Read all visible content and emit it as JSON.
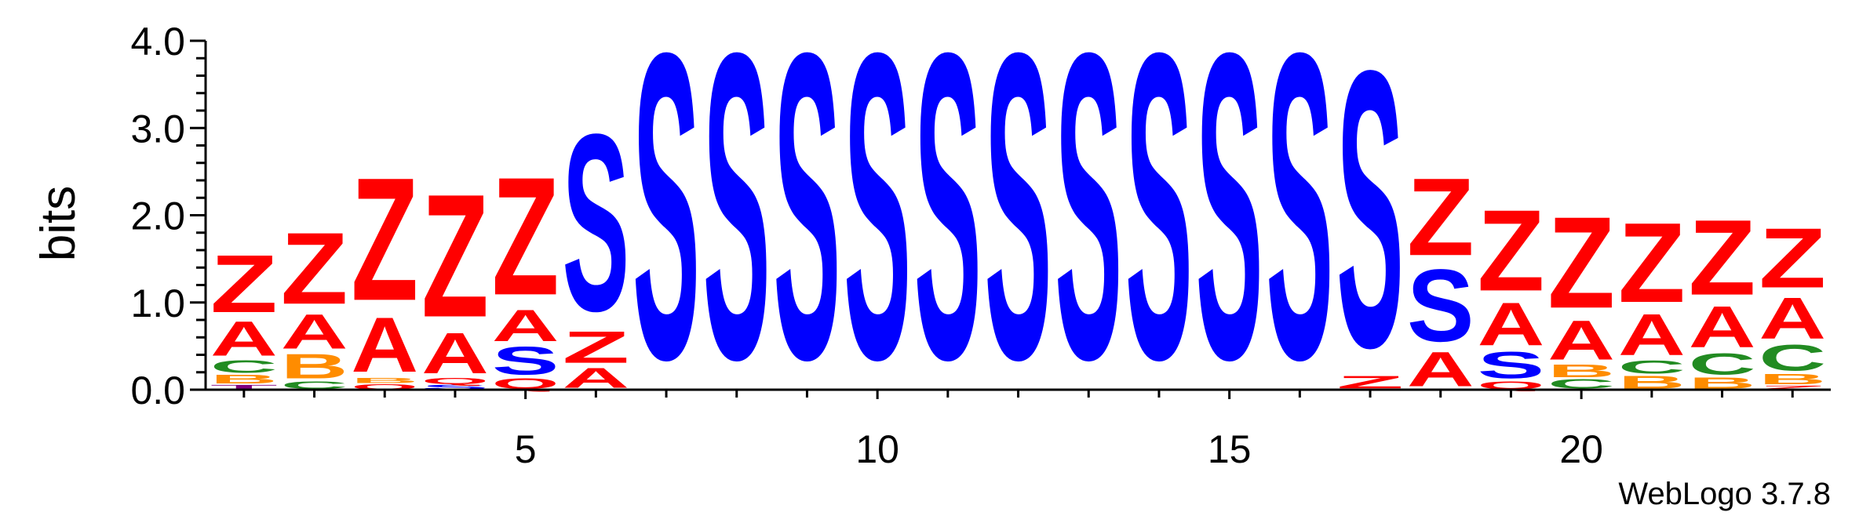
{
  "chart_data": {
    "type": "sequence_logo",
    "ylabel": "bits",
    "ylim": [
      0,
      4.0
    ],
    "y_ticks": [
      "0.0",
      "1.0",
      "2.0",
      "3.0",
      "4.0"
    ],
    "y_tick_values": [
      0,
      1,
      2,
      3,
      4
    ],
    "x_ticks": [
      "5",
      "10",
      "15",
      "20"
    ],
    "x_tick_values": [
      5,
      10,
      15,
      20
    ],
    "positions": [
      1,
      2,
      3,
      4,
      5,
      6,
      7,
      8,
      9,
      10,
      11,
      12,
      13,
      14,
      15,
      16,
      17,
      18,
      19,
      20,
      21,
      22,
      23
    ],
    "colors": {
      "Z": "#ff0000",
      "A": "#ff0000",
      "S": "#0000ff",
      "B": "#ff8c00",
      "C": "#228b22",
      "Q": "#ff0000",
      "T": "#800080"
    },
    "stacks": [
      [
        [
          "T",
          0.06
        ],
        [
          "B",
          0.12
        ],
        [
          "C",
          0.17
        ],
        [
          "A",
          0.47
        ],
        [
          "Z",
          0.78
        ]
      ],
      [
        [
          "C",
          0.1
        ],
        [
          "B",
          0.33
        ],
        [
          "A",
          0.47
        ],
        [
          "Z",
          0.97
        ]
      ],
      [
        [
          "Q",
          0.07
        ],
        [
          "B",
          0.07
        ],
        [
          "A",
          0.74
        ],
        [
          "Z",
          1.67
        ]
      ],
      [
        [
          "S",
          0.06
        ],
        [
          "Q",
          0.08
        ],
        [
          "A",
          0.55
        ],
        [
          "Z",
          1.67
        ]
      ],
      [
        [
          "Q",
          0.14
        ],
        [
          "S",
          0.38
        ],
        [
          "A",
          0.43
        ],
        [
          "Z",
          1.6
        ]
      ],
      [
        [
          "A",
          0.27
        ],
        [
          "Z",
          0.43
        ],
        [
          "S",
          2.4
        ]
      ],
      [
        [
          "S",
          4.15
        ]
      ],
      [
        [
          "S",
          4.15
        ]
      ],
      [
        [
          "S",
          4.15
        ]
      ],
      [
        [
          "S",
          4.15
        ]
      ],
      [
        [
          "S",
          4.15
        ]
      ],
      [
        [
          "S",
          4.15
        ]
      ],
      [
        [
          "S",
          4.15
        ]
      ],
      [
        [
          "S",
          4.15
        ]
      ],
      [
        [
          "S",
          4.15
        ]
      ],
      [
        [
          "S",
          4.15
        ]
      ],
      [
        [
          "Z",
          0.17
        ],
        [
          "S",
          3.75
        ]
      ],
      [
        [
          "A",
          0.47
        ],
        [
          "S",
          0.98
        ],
        [
          "Z",
          1.05
        ]
      ],
      [
        [
          "Q",
          0.1
        ],
        [
          "S",
          0.36
        ],
        [
          "A",
          0.58
        ],
        [
          "Z",
          1.1
        ]
      ],
      [
        [
          "C",
          0.13
        ],
        [
          "B",
          0.17
        ],
        [
          "A",
          0.53
        ],
        [
          "Z",
          1.24
        ]
      ],
      [
        [
          "B",
          0.17
        ],
        [
          "C",
          0.18
        ],
        [
          "A",
          0.56
        ],
        [
          "Z",
          1.08
        ]
      ],
      [
        [
          "B",
          0.15
        ],
        [
          "C",
          0.29
        ],
        [
          "A",
          0.56
        ],
        [
          "Z",
          1.02
        ]
      ],
      [
        [
          "Z",
          0.05
        ],
        [
          "B",
          0.14
        ],
        [
          "C",
          0.35
        ],
        [
          "A",
          0.56
        ],
        [
          "Z",
          0.81
        ]
      ]
    ]
  },
  "credit": "WebLogo 3.7.8"
}
